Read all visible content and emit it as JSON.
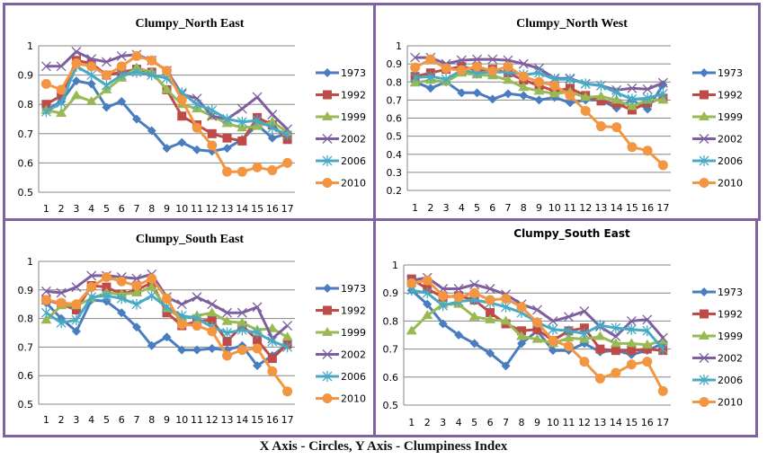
{
  "caption": "X Axis - Circles, Y Axis - Clumpiness Index",
  "series_styles": [
    {
      "name": "1973",
      "color": "#4a7dbf",
      "marker": "diamond"
    },
    {
      "name": "1992",
      "color": "#be4b48",
      "marker": "square"
    },
    {
      "name": "1999",
      "color": "#98b954",
      "marker": "triangle"
    },
    {
      "name": "2002",
      "color": "#7d5fa0",
      "marker": "x"
    },
    {
      "name": "2006",
      "color": "#46aac5",
      "marker": "star"
    },
    {
      "name": "2010",
      "color": "#f39642",
      "marker": "circle"
    }
  ],
  "chart_data": [
    {
      "type": "line",
      "title": "Clumpy_North  East",
      "xlabel": "Circles",
      "ylabel": "Clumpiness Index",
      "x": [
        1,
        2,
        3,
        4,
        5,
        6,
        7,
        8,
        9,
        10,
        11,
        12,
        13,
        14,
        15,
        16,
        17
      ],
      "ylim": [
        0.5,
        1.0
      ],
      "yticks": [
        "0.5",
        "0.6",
        "0.7",
        "0.8",
        "0.9",
        "1"
      ],
      "grid": true,
      "legend": "right",
      "series": [
        {
          "name": "1973",
          "values": [
            0.78,
            0.81,
            0.88,
            0.87,
            0.79,
            0.81,
            0.75,
            0.71,
            0.65,
            0.67,
            0.645,
            0.64,
            0.65,
            0.68,
            0.73,
            0.685,
            0.7
          ]
        },
        {
          "name": "1992",
          "values": [
            0.8,
            0.83,
            0.95,
            0.94,
            0.9,
            0.91,
            0.92,
            0.91,
            0.85,
            0.76,
            0.73,
            0.7,
            0.685,
            0.675,
            0.755,
            0.73,
            0.68
          ]
        },
        {
          "name": "1999",
          "values": [
            0.78,
            0.77,
            0.83,
            0.81,
            0.85,
            0.89,
            0.925,
            0.91,
            0.85,
            0.8,
            0.785,
            0.76,
            0.735,
            0.72,
            0.725,
            0.74,
            0.705
          ]
        },
        {
          "name": "2002",
          "values": [
            0.93,
            0.93,
            0.98,
            0.955,
            0.945,
            0.965,
            0.97,
            0.95,
            0.915,
            0.835,
            0.82,
            0.76,
            0.75,
            0.785,
            0.825,
            0.765,
            0.715
          ]
        },
        {
          "name": "2006",
          "values": [
            0.775,
            0.805,
            0.93,
            0.9,
            0.865,
            0.9,
            0.91,
            0.9,
            0.89,
            0.84,
            0.8,
            0.78,
            0.75,
            0.74,
            0.745,
            0.72,
            0.695
          ]
        },
        {
          "name": "2010",
          "values": [
            0.87,
            0.85,
            0.94,
            0.93,
            0.9,
            0.93,
            0.965,
            0.95,
            0.915,
            0.815,
            0.72,
            0.66,
            0.57,
            0.57,
            0.585,
            0.575,
            0.6
          ]
        }
      ]
    },
    {
      "type": "line",
      "title": "Clumpy_North  West",
      "xlabel": "Circles",
      "ylabel": "Clumpiness Index",
      "x": [
        1,
        2,
        3,
        4,
        5,
        6,
        7,
        8,
        9,
        10,
        11,
        12,
        13,
        14,
        15,
        16,
        17
      ],
      "ylim": [
        0.2,
        1.0
      ],
      "yticks": [
        "0.2",
        "0.3",
        "0.4",
        "0.5",
        "0.6",
        "0.7",
        "0.8",
        "0.9",
        "1"
      ],
      "grid": true,
      "legend": "right",
      "series": [
        {
          "name": "1973",
          "values": [
            0.8,
            0.765,
            0.8,
            0.74,
            0.74,
            0.705,
            0.735,
            0.725,
            0.7,
            0.715,
            0.685,
            0.7,
            0.7,
            0.655,
            0.7,
            0.65,
            0.785
          ]
        },
        {
          "name": "1992",
          "values": [
            0.83,
            0.85,
            0.87,
            0.885,
            0.865,
            0.87,
            0.85,
            0.81,
            0.78,
            0.75,
            0.765,
            0.725,
            0.695,
            0.68,
            0.645,
            0.685,
            0.71
          ]
        },
        {
          "name": "1999",
          "values": [
            0.795,
            0.81,
            0.8,
            0.85,
            0.84,
            0.835,
            0.81,
            0.77,
            0.75,
            0.735,
            0.745,
            0.715,
            0.72,
            0.7,
            0.665,
            0.7,
            0.7
          ]
        },
        {
          "name": "2002",
          "values": [
            0.935,
            0.935,
            0.9,
            0.92,
            0.925,
            0.925,
            0.92,
            0.9,
            0.875,
            0.82,
            0.82,
            0.79,
            0.78,
            0.755,
            0.765,
            0.76,
            0.795
          ]
        },
        {
          "name": "2006",
          "values": [
            0.825,
            0.83,
            0.815,
            0.865,
            0.85,
            0.855,
            0.855,
            0.84,
            0.85,
            0.815,
            0.815,
            0.79,
            0.78,
            0.74,
            0.705,
            0.71,
            0.735
          ]
        },
        {
          "name": "2010",
          "values": [
            0.88,
            0.925,
            0.875,
            0.865,
            0.885,
            0.86,
            0.885,
            0.83,
            0.8,
            0.78,
            0.725,
            0.64,
            0.555,
            0.55,
            0.44,
            0.42,
            0.34
          ]
        }
      ]
    },
    {
      "type": "line",
      "title": "Clumpy_South  East",
      "xlabel": "Circles",
      "ylabel": "Clumpiness Index",
      "x": [
        1,
        2,
        3,
        4,
        5,
        6,
        7,
        8,
        9,
        10,
        11,
        12,
        13,
        14,
        15,
        16,
        17
      ],
      "ylim": [
        0.5,
        1.0
      ],
      "yticks": [
        "0.5",
        "0.6",
        "0.7",
        "0.8",
        "0.9",
        "1"
      ],
      "grid": true,
      "legend": "right",
      "series": [
        {
          "name": "1973",
          "values": [
            0.855,
            0.8,
            0.755,
            0.865,
            0.86,
            0.82,
            0.77,
            0.705,
            0.735,
            0.69,
            0.69,
            0.695,
            0.69,
            0.705,
            0.635,
            0.67,
            0.71
          ]
        },
        {
          "name": "1992",
          "values": [
            0.865,
            0.85,
            0.83,
            0.915,
            0.91,
            0.885,
            0.9,
            0.925,
            0.82,
            0.775,
            0.79,
            0.795,
            0.72,
            0.775,
            0.725,
            0.66,
            0.71
          ]
        },
        {
          "name": "1999",
          "values": [
            0.795,
            0.845,
            0.845,
            0.87,
            0.89,
            0.885,
            0.89,
            0.91,
            0.835,
            0.8,
            0.81,
            0.82,
            0.79,
            0.785,
            0.76,
            0.765,
            0.735
          ]
        },
        {
          "name": "2002",
          "values": [
            0.895,
            0.89,
            0.91,
            0.95,
            0.95,
            0.945,
            0.94,
            0.955,
            0.875,
            0.85,
            0.875,
            0.85,
            0.82,
            0.82,
            0.84,
            0.73,
            0.775
          ]
        },
        {
          "name": "2006",
          "values": [
            0.82,
            0.785,
            0.795,
            0.875,
            0.88,
            0.87,
            0.85,
            0.88,
            0.84,
            0.81,
            0.8,
            0.77,
            0.75,
            0.76,
            0.75,
            0.72,
            0.7
          ]
        },
        {
          "name": "2010",
          "values": [
            0.865,
            0.855,
            0.85,
            0.91,
            0.945,
            0.93,
            0.915,
            0.94,
            0.87,
            0.78,
            0.775,
            0.755,
            0.67,
            0.69,
            0.695,
            0.615,
            0.545
          ]
        }
      ]
    },
    {
      "type": "line",
      "title": "Clumpy_South East",
      "xlabel": "Circles",
      "ylabel": "Clumpiness Index",
      "x": [
        1,
        2,
        3,
        4,
        5,
        6,
        7,
        8,
        9,
        10,
        11,
        12,
        13,
        14,
        15,
        16,
        17
      ],
      "ylim": [
        0.5,
        1.0
      ],
      "yticks": [
        "0.5",
        "0.6",
        "0.7",
        "0.8",
        "0.9",
        "1"
      ],
      "grid": true,
      "legend": "right",
      "series": [
        {
          "name": "1973",
          "values": [
            0.91,
            0.86,
            0.79,
            0.75,
            0.72,
            0.685,
            0.64,
            0.72,
            0.765,
            0.695,
            0.695,
            0.72,
            0.69,
            0.695,
            0.68,
            0.695,
            0.72
          ]
        },
        {
          "name": "1992",
          "values": [
            0.95,
            0.915,
            0.885,
            0.89,
            0.875,
            0.83,
            0.79,
            0.765,
            0.77,
            0.73,
            0.765,
            0.775,
            0.7,
            0.695,
            0.695,
            0.7,
            0.695
          ]
        },
        {
          "name": "1999",
          "values": [
            0.765,
            0.82,
            0.86,
            0.86,
            0.815,
            0.805,
            0.8,
            0.745,
            0.735,
            0.72,
            0.74,
            0.735,
            0.745,
            0.72,
            0.72,
            0.715,
            0.73
          ]
        },
        {
          "name": "2002",
          "values": [
            0.945,
            0.955,
            0.915,
            0.915,
            0.93,
            0.915,
            0.895,
            0.86,
            0.84,
            0.8,
            0.815,
            0.835,
            0.78,
            0.745,
            0.8,
            0.805,
            0.74
          ]
        },
        {
          "name": "2006",
          "values": [
            0.91,
            0.9,
            0.855,
            0.87,
            0.875,
            0.865,
            0.85,
            0.83,
            0.795,
            0.77,
            0.765,
            0.755,
            0.785,
            0.775,
            0.77,
            0.765,
            0.7
          ]
        },
        {
          "name": "2010",
          "values": [
            0.935,
            0.945,
            0.89,
            0.885,
            0.9,
            0.875,
            0.88,
            0.85,
            0.795,
            0.73,
            0.71,
            0.655,
            0.595,
            0.615,
            0.645,
            0.655,
            0.55
          ]
        }
      ]
    }
  ]
}
